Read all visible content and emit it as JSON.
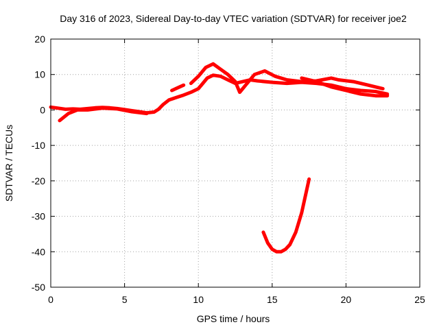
{
  "chart_data": {
    "type": "line",
    "title": "Day 316 of 2023, Sidereal Day-to-day VTEC variation (SDTVAR) for receiver joe2",
    "xlabel": "GPS time / hours",
    "ylabel": "SDTVAR / TECUs",
    "xlim": [
      0,
      25
    ],
    "ylim": [
      -50,
      20
    ],
    "xticks": [
      0,
      5,
      10,
      15,
      20,
      25
    ],
    "yticks": [
      -50,
      -40,
      -30,
      -20,
      -10,
      0,
      10,
      20
    ],
    "grid": true,
    "legend": "none",
    "series_color": "#ff0000",
    "series": [
      {
        "name": "track-a",
        "points": [
          [
            0,
            0.8
          ],
          [
            0.5,
            0.5
          ],
          [
            1,
            0.2
          ],
          [
            1.5,
            0.3
          ],
          [
            2,
            0.2
          ],
          [
            2.5,
            0.4
          ],
          [
            3,
            0.6
          ],
          [
            3.5,
            0.7
          ],
          [
            4,
            0.6
          ],
          [
            4.5,
            0.4
          ],
          [
            5,
            0.1
          ],
          [
            5.5,
            -0.2
          ],
          [
            6,
            -0.5
          ],
          [
            6.5,
            -0.8
          ],
          [
            7,
            -0.6
          ],
          [
            7.3,
            0.2
          ],
          [
            7.6,
            1.5
          ],
          [
            8,
            2.8
          ],
          [
            8.5,
            3.5
          ],
          [
            9,
            4.2
          ],
          [
            9.5,
            5.0
          ],
          [
            10,
            6.0
          ],
          [
            10.3,
            7.5
          ],
          [
            10.6,
            9.0
          ],
          [
            11,
            9.8
          ],
          [
            11.5,
            9.5
          ],
          [
            12,
            8.5
          ],
          [
            12.5,
            7.5
          ],
          [
            13,
            8.0
          ],
          [
            13.5,
            8.5
          ],
          [
            14,
            8.2
          ],
          [
            15,
            7.8
          ],
          [
            16,
            7.5
          ],
          [
            17,
            7.8
          ],
          [
            18,
            7.5
          ],
          [
            19,
            7.0
          ],
          [
            20,
            6.0
          ],
          [
            21,
            5.5
          ],
          [
            22,
            5.2
          ],
          [
            22.8,
            4.5
          ]
        ]
      },
      {
        "name": "track-b",
        "points": [
          [
            0.6,
            -3
          ],
          [
            1.2,
            -1
          ],
          [
            1.8,
            0
          ],
          [
            2.5,
            0
          ],
          [
            3.5,
            0.5
          ],
          [
            4.5,
            0.3
          ],
          [
            5.5,
            -0.5
          ],
          [
            6.5,
            -1.0
          ]
        ]
      },
      {
        "name": "track-c",
        "points": [
          [
            8.2,
            5.5
          ],
          [
            9,
            7.0
          ]
        ]
      },
      {
        "name": "track-d",
        "points": [
          [
            9.5,
            7.5
          ],
          [
            10,
            9.5
          ],
          [
            10.5,
            12.0
          ],
          [
            11,
            13.0
          ],
          [
            11.5,
            11.5
          ],
          [
            12,
            10.0
          ],
          [
            12.5,
            8.0
          ],
          [
            12.8,
            5.0
          ],
          [
            13.2,
            7.0
          ],
          [
            13.8,
            10.0
          ],
          [
            14.5,
            11.0
          ],
          [
            15.2,
            9.5
          ],
          [
            16,
            8.5
          ],
          [
            17,
            8.0
          ],
          [
            18,
            8.2
          ],
          [
            19,
            9.0
          ],
          [
            19.5,
            8.5
          ],
          [
            20.5,
            8.0
          ],
          [
            21.5,
            7.0
          ],
          [
            22.5,
            6.0
          ]
        ]
      },
      {
        "name": "track-e",
        "points": [
          [
            17,
            9.0
          ],
          [
            18,
            8.0
          ],
          [
            19,
            6.5
          ],
          [
            20,
            5.5
          ],
          [
            21,
            4.5
          ],
          [
            22,
            4.0
          ],
          [
            22.8,
            4.0
          ]
        ]
      },
      {
        "name": "track-f",
        "points": [
          [
            14.4,
            -34.5
          ],
          [
            14.7,
            -37.5
          ],
          [
            15.0,
            -39.3
          ],
          [
            15.3,
            -40.0
          ],
          [
            15.6,
            -40.0
          ],
          [
            15.9,
            -39.3
          ],
          [
            16.2,
            -38.0
          ],
          [
            16.6,
            -34.5
          ],
          [
            17.0,
            -29.0
          ],
          [
            17.5,
            -19.5
          ]
        ]
      }
    ]
  }
}
